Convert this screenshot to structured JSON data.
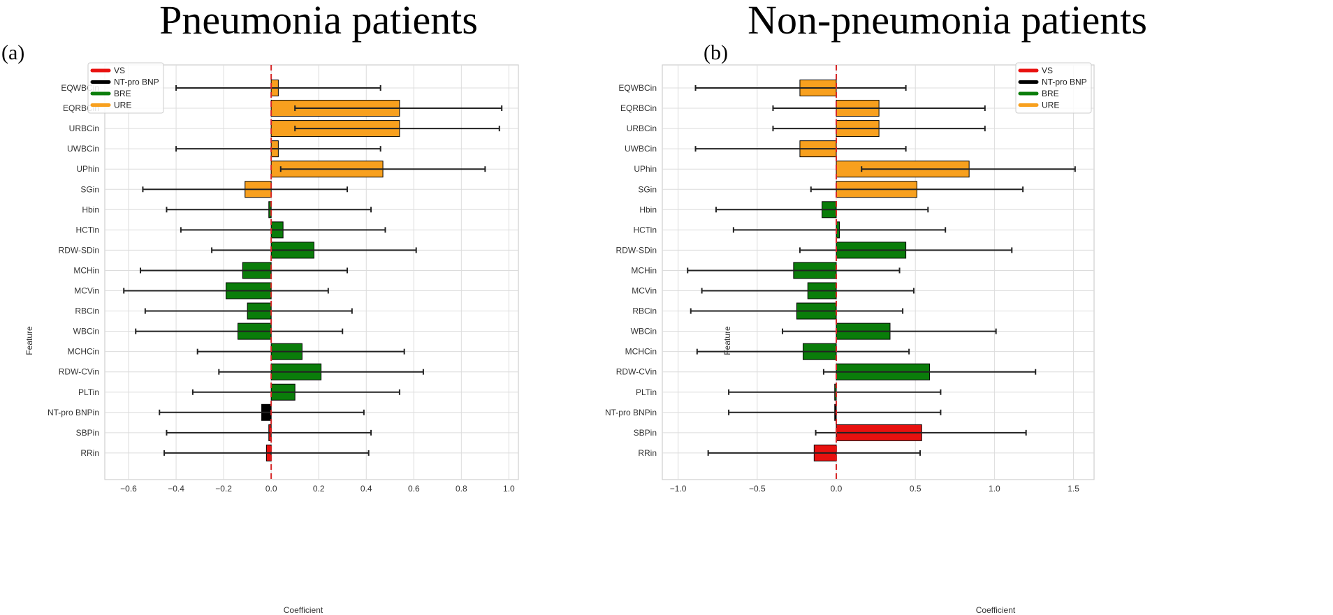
{
  "colors": {
    "VS": "#e8110f",
    "NT-pro BNP": "#000000",
    "BRE": "#0a7d0a",
    "URE": "#f8a01e",
    "zero_line": "#d62728"
  },
  "chart_data": [
    {
      "type": "bar",
      "orientation": "horizontal",
      "panel": "(a)",
      "title": "Pneumonia patients",
      "xlabel": "Coefficient",
      "ylabel": "Feature",
      "xlim": [
        -0.7,
        1.04
      ],
      "xticks": [
        -0.6,
        -0.4,
        -0.2,
        0.0,
        0.2,
        0.4,
        0.6,
        0.8,
        1.0
      ],
      "xtick_labels": [
        "−0.6",
        "−0.4",
        "−0.2",
        "0.0",
        "0.2",
        "0.4",
        "0.6",
        "0.8",
        "1.0"
      ],
      "grid": true,
      "legend_position": "top-left",
      "legend": [
        "VS",
        "NT-pro BNP",
        "BRE",
        "URE"
      ],
      "features": [
        {
          "name": "EQWBCin",
          "group": "URE",
          "value": 0.03,
          "ci": [
            -0.4,
            0.46
          ]
        },
        {
          "name": "EQRBCin",
          "group": "URE",
          "value": 0.54,
          "ci": [
            0.1,
            0.97
          ]
        },
        {
          "name": "URBCin",
          "group": "URE",
          "value": 0.54,
          "ci": [
            0.1,
            0.96
          ]
        },
        {
          "name": "UWBCin",
          "group": "URE",
          "value": 0.03,
          "ci": [
            -0.4,
            0.46
          ]
        },
        {
          "name": "UPhin",
          "group": "URE",
          "value": 0.47,
          "ci": [
            0.04,
            0.9
          ]
        },
        {
          "name": "SGin",
          "group": "URE",
          "value": -0.11,
          "ci": [
            -0.54,
            0.32
          ]
        },
        {
          "name": "Hbin",
          "group": "BRE",
          "value": -0.01,
          "ci": [
            -0.44,
            0.42
          ]
        },
        {
          "name": "HCTin",
          "group": "BRE",
          "value": 0.05,
          "ci": [
            -0.38,
            0.48
          ]
        },
        {
          "name": "RDW-SDin",
          "group": "BRE",
          "value": 0.18,
          "ci": [
            -0.25,
            0.61
          ]
        },
        {
          "name": "MCHin",
          "group": "BRE",
          "value": -0.12,
          "ci": [
            -0.55,
            0.32
          ]
        },
        {
          "name": "MCVin",
          "group": "BRE",
          "value": -0.19,
          "ci": [
            -0.62,
            0.24
          ]
        },
        {
          "name": "RBCin",
          "group": "BRE",
          "value": -0.1,
          "ci": [
            -0.53,
            0.34
          ]
        },
        {
          "name": "WBCin",
          "group": "BRE",
          "value": -0.14,
          "ci": [
            -0.57,
            0.3
          ]
        },
        {
          "name": "MCHCin",
          "group": "BRE",
          "value": 0.13,
          "ci": [
            -0.31,
            0.56
          ]
        },
        {
          "name": "RDW-CVin",
          "group": "BRE",
          "value": 0.21,
          "ci": [
            -0.22,
            0.64
          ]
        },
        {
          "name": "PLTin",
          "group": "BRE",
          "value": 0.1,
          "ci": [
            -0.33,
            0.54
          ]
        },
        {
          "name": "NT-pro BNPin",
          "group": "NT-pro BNP",
          "value": -0.04,
          "ci": [
            -0.47,
            0.39
          ]
        },
        {
          "name": "SBPin",
          "group": "VS",
          "value": -0.01,
          "ci": [
            -0.44,
            0.42
          ]
        },
        {
          "name": "RRin",
          "group": "VS",
          "value": -0.02,
          "ci": [
            -0.45,
            0.41
          ]
        }
      ]
    },
    {
      "type": "bar",
      "orientation": "horizontal",
      "panel": "(b)",
      "title": "Non-pneumonia patients",
      "xlabel": "Coefficient",
      "ylabel": "Feature",
      "xlim": [
        -1.1,
        1.63
      ],
      "xticks": [
        -1.0,
        -0.5,
        0.0,
        0.5,
        1.0,
        1.5
      ],
      "xtick_labels": [
        "−1.0",
        "−0.5",
        "0.0",
        "0.5",
        "1.0",
        "1.5"
      ],
      "grid": true,
      "legend_position": "top-right",
      "legend": [
        "VS",
        "NT-pro BNP",
        "BRE",
        "URE"
      ],
      "features": [
        {
          "name": "EQWBCin",
          "group": "URE",
          "value": -0.23,
          "ci": [
            -0.89,
            0.44
          ]
        },
        {
          "name": "EQRBCin",
          "group": "URE",
          "value": 0.27,
          "ci": [
            -0.4,
            0.94
          ]
        },
        {
          "name": "URBCin",
          "group": "URE",
          "value": 0.27,
          "ci": [
            -0.4,
            0.94
          ]
        },
        {
          "name": "UWBCin",
          "group": "URE",
          "value": -0.23,
          "ci": [
            -0.89,
            0.44
          ]
        },
        {
          "name": "UPhin",
          "group": "URE",
          "value": 0.84,
          "ci": [
            0.16,
            1.51
          ]
        },
        {
          "name": "SGin",
          "group": "URE",
          "value": 0.51,
          "ci": [
            -0.16,
            1.18
          ]
        },
        {
          "name": "Hbin",
          "group": "BRE",
          "value": -0.09,
          "ci": [
            -0.76,
            0.58
          ]
        },
        {
          "name": "HCTin",
          "group": "BRE",
          "value": 0.02,
          "ci": [
            -0.65,
            0.69
          ]
        },
        {
          "name": "RDW-SDin",
          "group": "BRE",
          "value": 0.44,
          "ci": [
            -0.23,
            1.11
          ]
        },
        {
          "name": "MCHin",
          "group": "BRE",
          "value": -0.27,
          "ci": [
            -0.94,
            0.4
          ]
        },
        {
          "name": "MCVin",
          "group": "BRE",
          "value": -0.18,
          "ci": [
            -0.85,
            0.49
          ]
        },
        {
          "name": "RBCin",
          "group": "BRE",
          "value": -0.25,
          "ci": [
            -0.92,
            0.42
          ]
        },
        {
          "name": "WBCin",
          "group": "BRE",
          "value": 0.34,
          "ci": [
            -0.34,
            1.01
          ]
        },
        {
          "name": "MCHCin",
          "group": "BRE",
          "value": -0.21,
          "ci": [
            -0.88,
            0.46
          ]
        },
        {
          "name": "RDW-CVin",
          "group": "BRE",
          "value": 0.59,
          "ci": [
            -0.08,
            1.26
          ]
        },
        {
          "name": "PLTin",
          "group": "BRE",
          "value": -0.01,
          "ci": [
            -0.68,
            0.66
          ]
        },
        {
          "name": "NT-pro BNPin",
          "group": "NT-pro BNP",
          "value": -0.01,
          "ci": [
            -0.68,
            0.66
          ]
        },
        {
          "name": "SBPin",
          "group": "VS",
          "value": 0.54,
          "ci": [
            -0.13,
            1.2
          ]
        },
        {
          "name": "RRin",
          "group": "VS",
          "value": -0.14,
          "ci": [
            -0.81,
            0.53
          ]
        }
      ]
    }
  ]
}
